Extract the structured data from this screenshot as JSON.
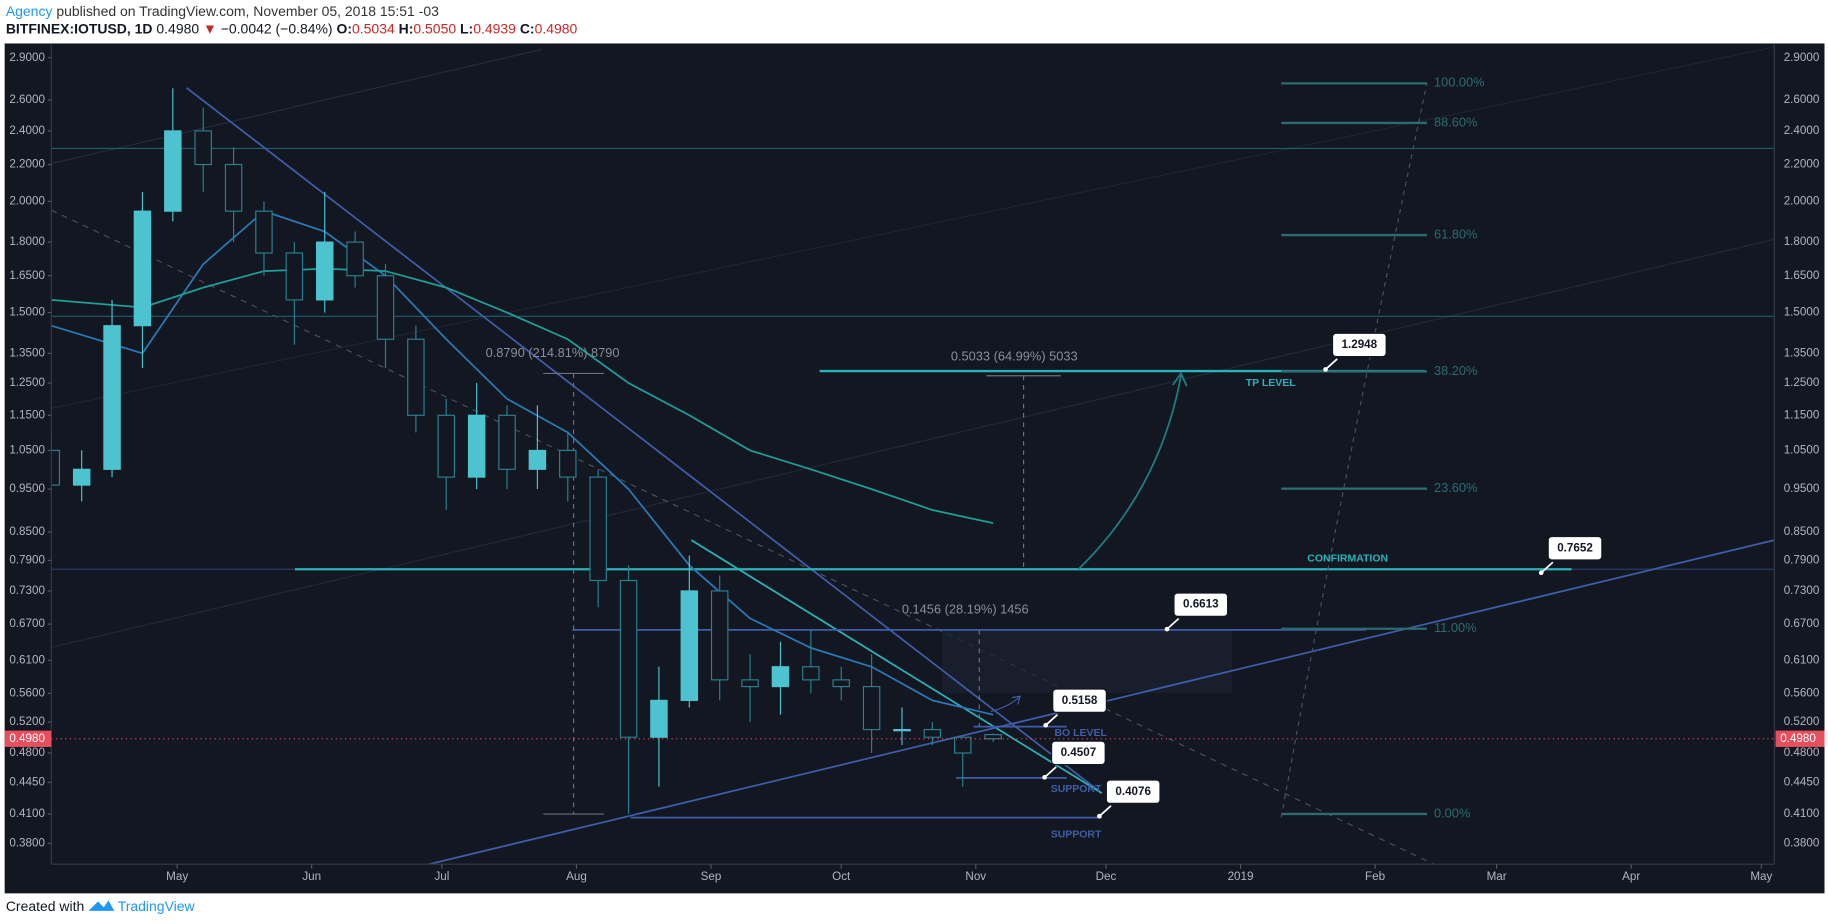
{
  "header": {
    "author": "Agency",
    "published": "published on TradingView.com, November 05, 2018 15:51 -03",
    "symbol": "BITFINEX:IOTUSD, 1D",
    "last": "0.4980",
    "direction": "▼",
    "change": "−0.0042 (−0.84%)",
    "open_label": "O:",
    "open": "0.5034",
    "high_label": "H:",
    "high": "0.5050",
    "low_label": "L:",
    "low": "0.4939",
    "close_label": "C:",
    "close": "0.4980"
  },
  "footer": {
    "created": "Created with",
    "brand": "TradingView"
  },
  "chart_data": {
    "type": "candlestick",
    "log_scale": true,
    "up_color": "#4ec3d0",
    "down_color": "#2b7f8e",
    "x": [
      "2018-04-02",
      "2018-04-09",
      "2018-04-16",
      "2018-04-23",
      "2018-04-30",
      "2018-05-07",
      "2018-05-14",
      "2018-05-21",
      "2018-05-28",
      "2018-06-04",
      "2018-06-11",
      "2018-06-18",
      "2018-06-25",
      "2018-07-02",
      "2018-07-09",
      "2018-07-16",
      "2018-07-23",
      "2018-07-30",
      "2018-08-06",
      "2018-08-13",
      "2018-08-20",
      "2018-08-27",
      "2018-09-03",
      "2018-09-10",
      "2018-09-17",
      "2018-09-24",
      "2018-10-01",
      "2018-10-08",
      "2018-10-15",
      "2018-10-22",
      "2018-10-29",
      "2018-11-05"
    ],
    "open": [
      1.05,
      0.96,
      1.0,
      1.45,
      1.95,
      2.4,
      2.2,
      1.95,
      1.75,
      1.55,
      1.8,
      1.65,
      1.4,
      1.15,
      0.98,
      1.15,
      1.0,
      1.05,
      0.98,
      0.75,
      0.5,
      0.55,
      0.73,
      0.58,
      0.57,
      0.6,
      0.58,
      0.57,
      0.51,
      0.51,
      0.5,
      0.5034
    ],
    "high": [
      1.1,
      1.05,
      1.55,
      2.05,
      2.68,
      2.55,
      2.3,
      2.0,
      1.8,
      2.05,
      1.85,
      1.7,
      1.45,
      1.2,
      1.25,
      1.18,
      1.18,
      1.1,
      1.0,
      0.78,
      0.6,
      0.8,
      0.76,
      0.62,
      0.64,
      0.66,
      0.6,
      0.62,
      0.54,
      0.52,
      0.5,
      0.505
    ],
    "low": [
      0.93,
      0.92,
      0.98,
      1.3,
      1.9,
      2.05,
      1.8,
      1.65,
      1.38,
      1.5,
      1.6,
      1.3,
      1.1,
      0.9,
      0.95,
      0.95,
      0.95,
      0.92,
      0.7,
      0.41,
      0.44,
      0.54,
      0.55,
      0.52,
      0.53,
      0.56,
      0.55,
      0.48,
      0.49,
      0.49,
      0.44,
      0.4939
    ],
    "close": [
      0.96,
      1.0,
      1.45,
      1.95,
      2.4,
      2.2,
      1.95,
      1.75,
      1.55,
      1.8,
      1.65,
      1.4,
      1.15,
      0.98,
      1.15,
      1.0,
      1.05,
      0.98,
      0.75,
      0.5,
      0.55,
      0.73,
      0.58,
      0.57,
      0.6,
      0.58,
      0.57,
      0.51,
      0.51,
      0.5,
      0.48,
      0.498
    ],
    "overlays": [
      {
        "color": "#2a79b5",
        "x": [
          "2018-04-02",
          "2018-04-23",
          "2018-05-07",
          "2018-05-21",
          "2018-06-04",
          "2018-06-18",
          "2018-07-02",
          "2018-07-16",
          "2018-07-30",
          "2018-08-13",
          "2018-08-27",
          "2018-09-10",
          "2018-09-24",
          "2018-10-08",
          "2018-10-22",
          "2018-11-05"
        ],
        "values": [
          1.45,
          1.35,
          1.7,
          1.95,
          1.85,
          1.65,
          1.4,
          1.2,
          1.1,
          0.95,
          0.78,
          0.68,
          0.63,
          0.6,
          0.55,
          0.53
        ]
      },
      {
        "color": "#1f9e98",
        "x": [
          "2018-04-02",
          "2018-04-23",
          "2018-05-07",
          "2018-05-21",
          "2018-06-04",
          "2018-06-18",
          "2018-07-02",
          "2018-07-16",
          "2018-07-30",
          "2018-08-13",
          "2018-08-27",
          "2018-09-10",
          "2018-09-24",
          "2018-10-08",
          "2018-10-22",
          "2018-11-05"
        ],
        "values": [
          1.55,
          1.52,
          1.6,
          1.67,
          1.68,
          1.67,
          1.6,
          1.5,
          1.4,
          1.25,
          1.15,
          1.05,
          1.0,
          0.95,
          0.9,
          0.87
        ]
      }
    ],
    "xlim": [
      "2018-04-02",
      "2019-05-04"
    ],
    "xticks": [
      {
        "value": "2018-05-01",
        "label": "May"
      },
      {
        "value": "2018-06-01",
        "label": "Jun"
      },
      {
        "value": "2018-07-01",
        "label": "Jul"
      },
      {
        "value": "2018-08-01",
        "label": "Aug"
      },
      {
        "value": "2018-09-01",
        "label": "Sep"
      },
      {
        "value": "2018-10-01",
        "label": "Oct"
      },
      {
        "value": "2018-11-01",
        "label": "Nov"
      },
      {
        "value": "2018-12-01",
        "label": "Dec"
      },
      {
        "value": "2019-01-01",
        "label": "2019"
      },
      {
        "value": "2019-02-01",
        "label": "Feb"
      },
      {
        "value": "2019-03-01",
        "label": "Mar"
      },
      {
        "value": "2019-04-01",
        "label": "Apr"
      },
      {
        "value": "2019-05-01",
        "label": "May"
      }
    ],
    "ylim": [
      0.36,
      3.0
    ],
    "yticks": [
      {
        "value": 0.38,
        "label": "0.3800"
      },
      {
        "value": 0.41,
        "label": "0.4100"
      },
      {
        "value": 0.445,
        "label": "0.4450"
      },
      {
        "value": 0.48,
        "label": "0.4800"
      },
      {
        "value": 0.52,
        "label": "0.5200"
      },
      {
        "value": 0.56,
        "label": "0.5600"
      },
      {
        "value": 0.61,
        "label": "0.6100"
      },
      {
        "value": 0.67,
        "label": "0.6700"
      },
      {
        "value": 0.73,
        "label": "0.7300"
      },
      {
        "value": 0.79,
        "label": "0.7900"
      },
      {
        "value": 0.85,
        "label": "0.8500"
      },
      {
        "value": 0.95,
        "label": "0.9500"
      },
      {
        "value": 1.05,
        "label": "1.0500"
      },
      {
        "value": 1.15,
        "label": "1.1500"
      },
      {
        "value": 1.25,
        "label": "1.2500"
      },
      {
        "value": 1.35,
        "label": "1.3500"
      },
      {
        "value": 1.5,
        "label": "1.5000"
      },
      {
        "value": 1.65,
        "label": "1.6500"
      },
      {
        "value": 1.8,
        "label": "1.8000"
      },
      {
        "value": 2.0,
        "label": "2.0000"
      },
      {
        "value": 2.2,
        "label": "2.2000"
      },
      {
        "value": 2.4,
        "label": "2.4000"
      },
      {
        "value": 2.6,
        "label": "2.6000"
      },
      {
        "value": 2.9,
        "label": "2.9000"
      }
    ],
    "last_price": {
      "value": 0.498,
      "label": "0.4980"
    },
    "fib_levels": [
      {
        "value": 100,
        "label": "100.00%",
        "price": 2.714
      },
      {
        "value": 88.6,
        "label": "88.60%",
        "price": 2.45
      },
      {
        "value": 61.8,
        "label": "61.80%",
        "price": 1.833
      },
      {
        "value": 38.2,
        "label": "38.20%",
        "price": 1.288
      },
      {
        "value": 23.6,
        "label": "23.60%",
        "price": 0.951
      },
      {
        "value": 11,
        "label": "11.00%",
        "price": 0.662
      },
      {
        "value": 0,
        "label": "0.00%",
        "price": 0.41
      }
    ],
    "callouts": [
      {
        "value": 1.2948,
        "note": "TP LEVEL"
      },
      {
        "value": 0.7652,
        "note": "CONFIRMATION"
      },
      {
        "value": 0.6613
      },
      {
        "value": 0.5158,
        "note": "BO LEVEL"
      },
      {
        "value": 0.4507,
        "note": "SUPPORT"
      },
      {
        "value": 0.4076,
        "note": "SUPPORT"
      }
    ],
    "measures": [
      "0.8790 (214.81%) 8790",
      "0.5033 (64.99%) 5033",
      "0.1456 (28.19%) 1456"
    ]
  }
}
